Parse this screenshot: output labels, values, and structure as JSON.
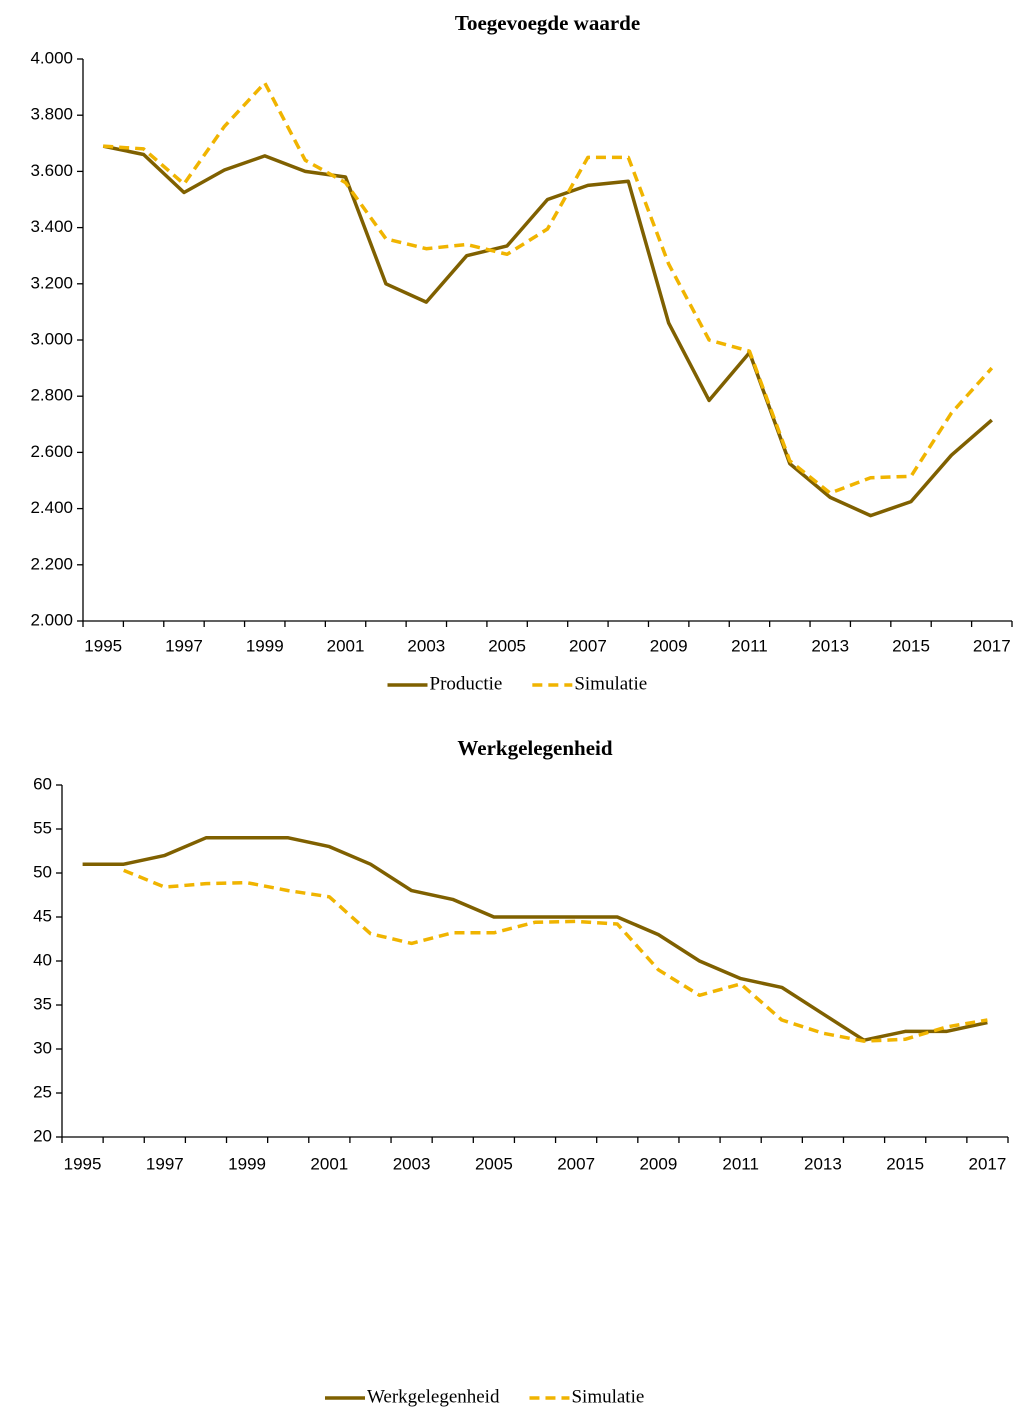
{
  "chart_data": [
    {
      "type": "line",
      "title": "Toegevoegde waarde",
      "categories": [
        "1995",
        null,
        "1997",
        null,
        "1999",
        null,
        "2001",
        null,
        "2003",
        null,
        "2005",
        null,
        "2007",
        null,
        "2009",
        null,
        "2011",
        null,
        "2013",
        null,
        "2015",
        null,
        "2017"
      ],
      "series": [
        {
          "name": "Productie",
          "color": "#7f6000",
          "dash": false,
          "values": [
            3690,
            3660,
            3525,
            3605,
            3655,
            3600,
            3580,
            3200,
            3135,
            3300,
            3335,
            3500,
            3550,
            3565,
            3060,
            2785,
            2955,
            2560,
            2440,
            2375,
            2425,
            2590,
            2715
          ]
        },
        {
          "name": "Simulatie",
          "color": "#f0b400",
          "dash": true,
          "values": [
            3690,
            3680,
            3555,
            3760,
            3915,
            3640,
            3560,
            3360,
            3325,
            3340,
            3305,
            3395,
            3650,
            3650,
            3270,
            3000,
            2960,
            2570,
            2455,
            2510,
            2515,
            2740,
            2900
          ]
        }
      ],
      "ylim": [
        2000,
        4000
      ],
      "yticks": [
        {
          "value": 2000,
          "label": "2.000"
        },
        {
          "value": 2200,
          "label": "2.200"
        },
        {
          "value": 2400,
          "label": "2.400"
        },
        {
          "value": 2600,
          "label": "2.600"
        },
        {
          "value": 2800,
          "label": "2.800"
        },
        {
          "value": 3000,
          "label": "3.000"
        },
        {
          "value": 3200,
          "label": "3.200"
        },
        {
          "value": 3400,
          "label": "3.400"
        },
        {
          "value": 3600,
          "label": "3.600"
        },
        {
          "value": 3800,
          "label": "3.800"
        },
        {
          "value": 4000,
          "label": "4.000"
        }
      ],
      "grid": false,
      "legend": "bottom"
    },
    {
      "type": "line",
      "title": "Werkgelegenheid",
      "categories": [
        "1995",
        null,
        "1997",
        null,
        "1999",
        null,
        "2001",
        null,
        "2003",
        null,
        "2005",
        null,
        "2007",
        null,
        "2009",
        null,
        "2011",
        null,
        "2013",
        null,
        "2015",
        null,
        "2017"
      ],
      "series": [
        {
          "name": "Werkgelegenheid",
          "color": "#7f6000",
          "dash": false,
          "values": [
            51,
            51,
            52,
            54,
            54,
            54,
            53,
            51,
            48,
            47,
            45,
            45,
            45,
            45,
            43,
            40,
            38,
            37,
            34,
            31,
            32,
            32,
            33
          ]
        },
        {
          "name": "Simulatie",
          "color": "#f0b400",
          "dash": true,
          "values": [
            null,
            50.3,
            48.4,
            48.8,
            48.9,
            48,
            47.3,
            43.1,
            42,
            43.2,
            43.2,
            44.4,
            44.5,
            44.2,
            39,
            36.1,
            37.4,
            33.3,
            31.8,
            30.9,
            31.1,
            32.5,
            33.3
          ]
        }
      ],
      "ylim": [
        20,
        60
      ],
      "yticks": [
        20,
        25,
        30,
        35,
        40,
        45,
        50,
        55,
        60
      ],
      "grid": false,
      "legend": "bottom"
    }
  ]
}
